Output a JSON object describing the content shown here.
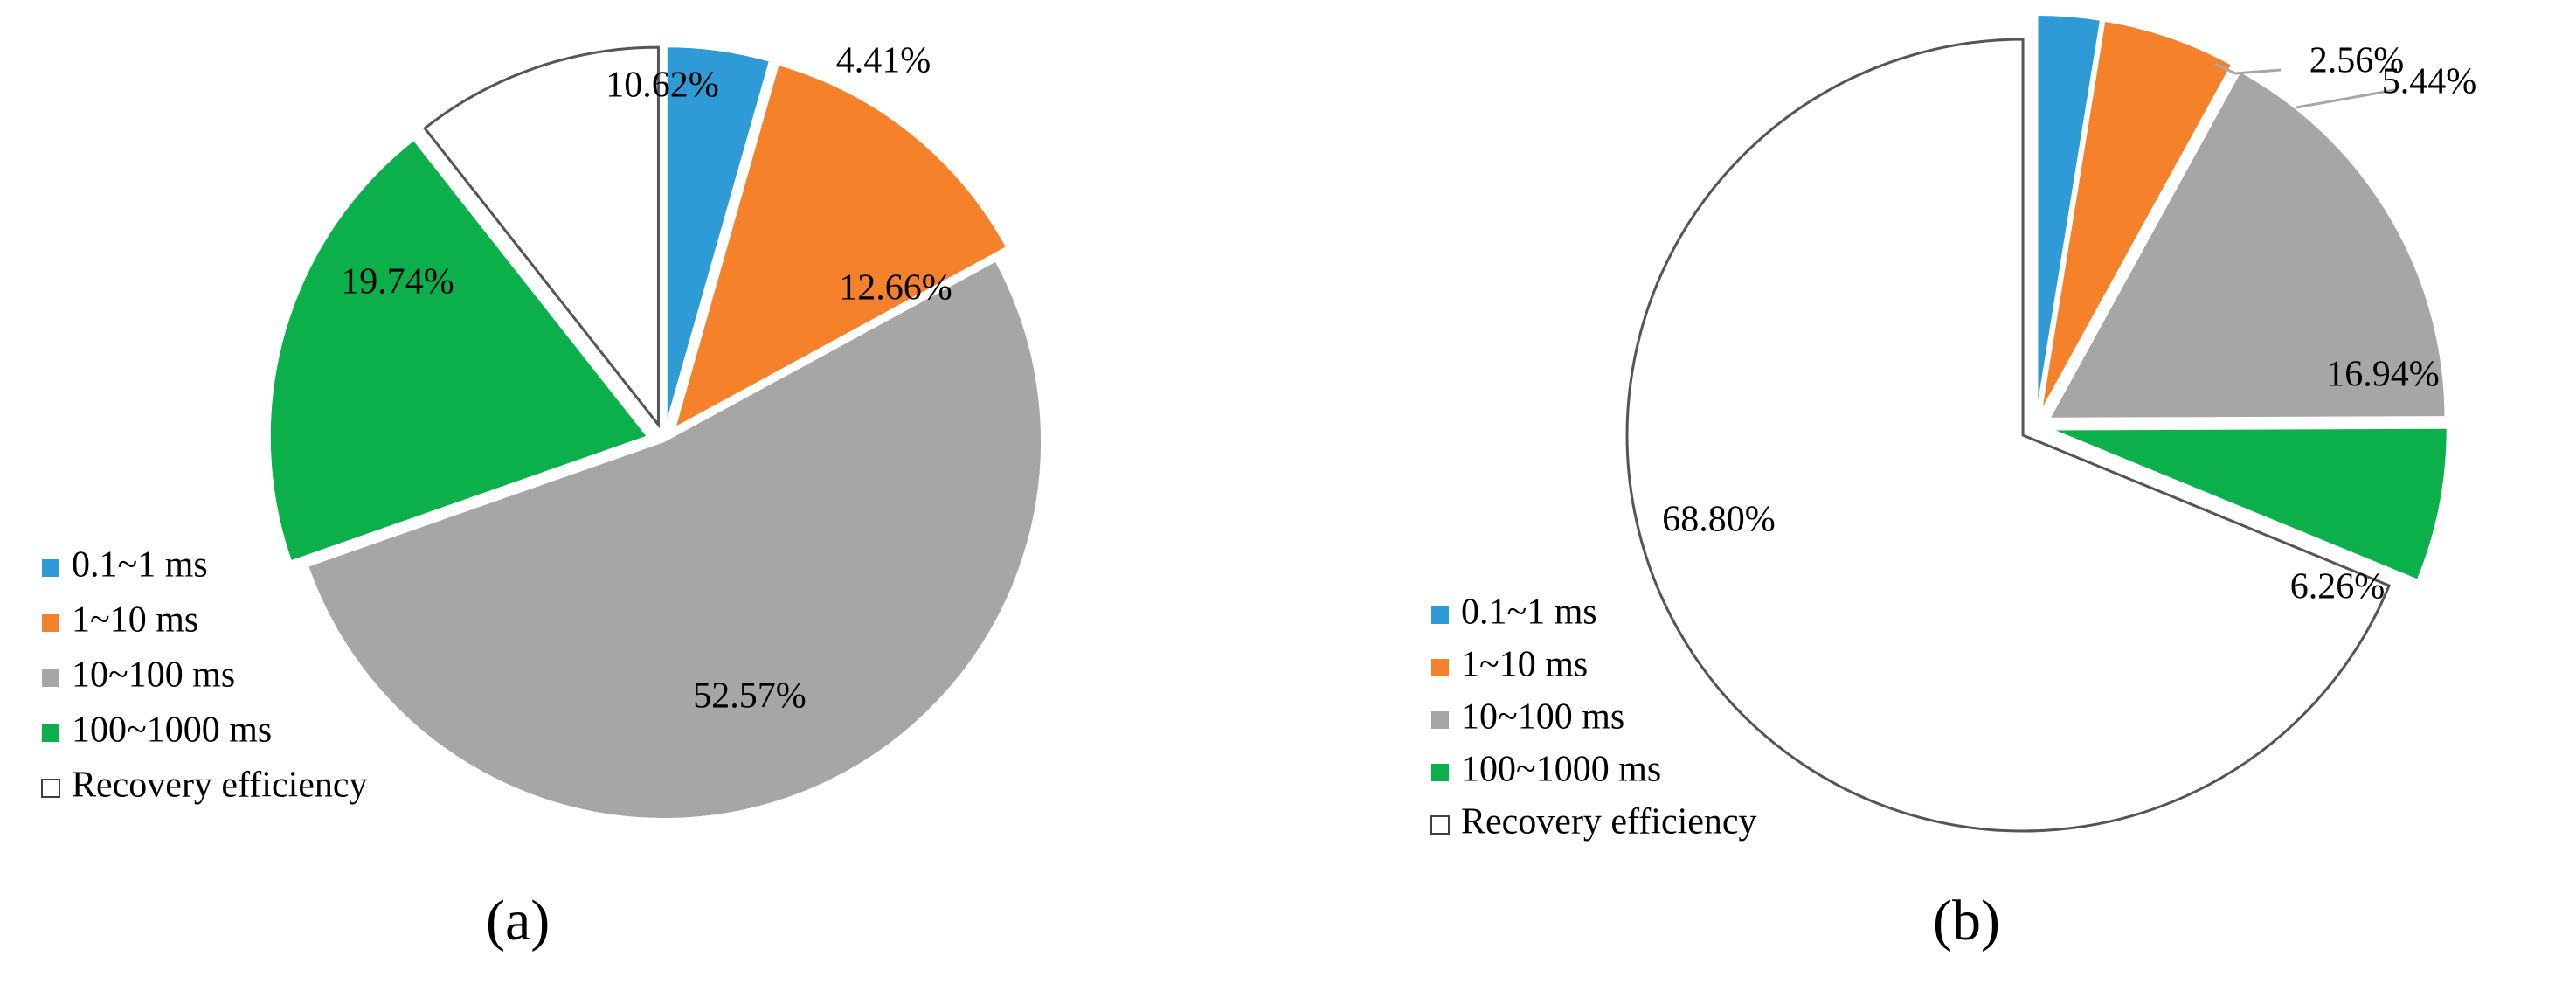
{
  "colors": {
    "0.1~1 ms": "#2E9BD6",
    "1~10 ms": "#F5822A",
    "10~100 ms": "#A6A6A6",
    "100~1000 ms": "#0BB04B",
    "Recovery efficiency": "#FFFFFF"
  },
  "chart_data": [
    {
      "type": "pie",
      "panel_label": "(a)",
      "legend_position": "bottom-left",
      "slices": [
        {
          "label": "0.1~1 ms",
          "value": 4.41,
          "display": "4.41%",
          "exploded": true
        },
        {
          "label": "1~10 ms",
          "value": 12.66,
          "display": "12.66%",
          "exploded": true
        },
        {
          "label": "10~100 ms",
          "value": 52.57,
          "display": "52.57%",
          "exploded": false
        },
        {
          "label": "100~1000 ms",
          "value": 19.74,
          "display": "19.74%",
          "exploded": true
        },
        {
          "label": "Recovery efficiency",
          "value": 10.62,
          "display": "10.62%",
          "exploded": true
        }
      ],
      "legend": [
        "0.1~1 ms",
        "1~10 ms",
        "10~100 ms",
        "100~1000 ms",
        "Recovery efficiency"
      ]
    },
    {
      "type": "pie",
      "panel_label": "(b)",
      "legend_position": "bottom-left",
      "slices": [
        {
          "label": "0.1~1 ms",
          "value": 2.56,
          "display": "2.56%",
          "exploded": true
        },
        {
          "label": "1~10 ms",
          "value": 5.44,
          "display": "5.44%",
          "exploded": true
        },
        {
          "label": "10~100 ms",
          "value": 16.94,
          "display": "16.94%",
          "exploded": true
        },
        {
          "label": "100~1000 ms",
          "value": 6.26,
          "display": "6.26%",
          "exploded": true
        },
        {
          "label": "Recovery efficiency",
          "value": 68.8,
          "display": "68.80%",
          "exploded": true
        }
      ],
      "legend": [
        "0.1~1 ms",
        "1~10 ms",
        "10~100 ms",
        "100~1000 ms",
        "Recovery efficiency"
      ]
    }
  ]
}
